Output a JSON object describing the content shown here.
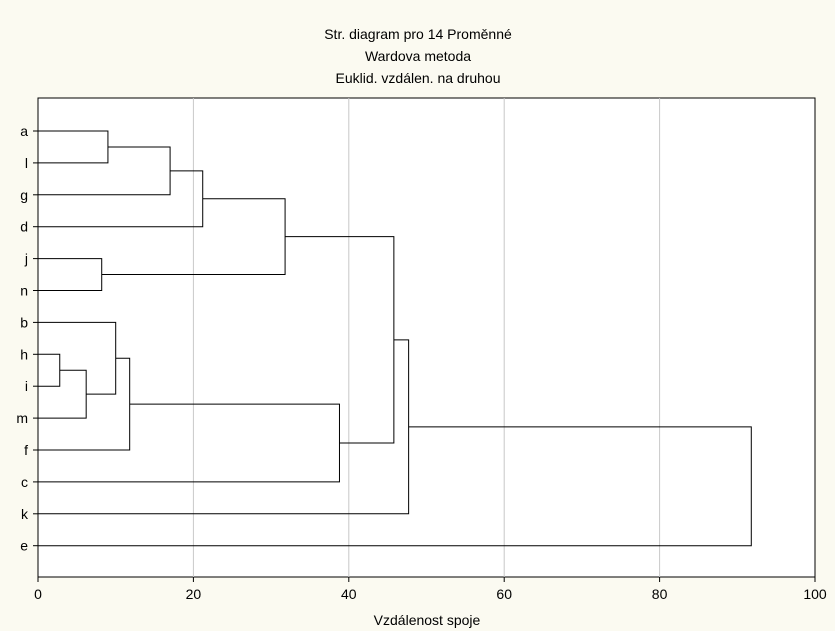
{
  "chart_data": {
    "type": "dendrogram",
    "title_lines": [
      "Str. diagram pro 14  Proměnné",
      "Wardova metoda",
      "Euklid. vzdálen. na druhou"
    ],
    "xlabel": "Vzdálenost spoje",
    "ylabel": "",
    "xlim": [
      0,
      100
    ],
    "x_ticks": [
      0,
      20,
      40,
      60,
      80,
      100
    ],
    "grid": true,
    "leaves": [
      "a",
      "l",
      "g",
      "d",
      "j",
      "n",
      "b",
      "h",
      "i",
      "m",
      "f",
      "c",
      "k",
      "e"
    ],
    "merges": [
      {
        "id": "m1",
        "left": "h",
        "right": "i",
        "height": 2.8
      },
      {
        "id": "m2",
        "left": "m1",
        "right": "m",
        "height": 6.2
      },
      {
        "id": "m3",
        "left": "j",
        "right": "n",
        "height": 8.2
      },
      {
        "id": "m4",
        "left": "a",
        "right": "l",
        "height": 9.0
      },
      {
        "id": "m5",
        "left": "b",
        "right": "m2",
        "height": 10.0
      },
      {
        "id": "m6",
        "left": "m5",
        "right": "f",
        "height": 11.8
      },
      {
        "id": "m7",
        "left": "m4",
        "right": "g",
        "height": 17.0
      },
      {
        "id": "m8",
        "left": "m7",
        "right": "d",
        "height": 21.2
      },
      {
        "id": "m9",
        "left": "m8",
        "right": "m3",
        "height": 31.8
      },
      {
        "id": "m10",
        "left": "m6",
        "right": "c",
        "height": 38.8
      },
      {
        "id": "m11",
        "left": "m9",
        "right": "m10",
        "height": 45.8
      },
      {
        "id": "m12",
        "left": "m11",
        "right": "k",
        "height": 47.7
      },
      {
        "id": "m13",
        "left": "m12",
        "right": "e",
        "height": 91.8
      }
    ]
  }
}
